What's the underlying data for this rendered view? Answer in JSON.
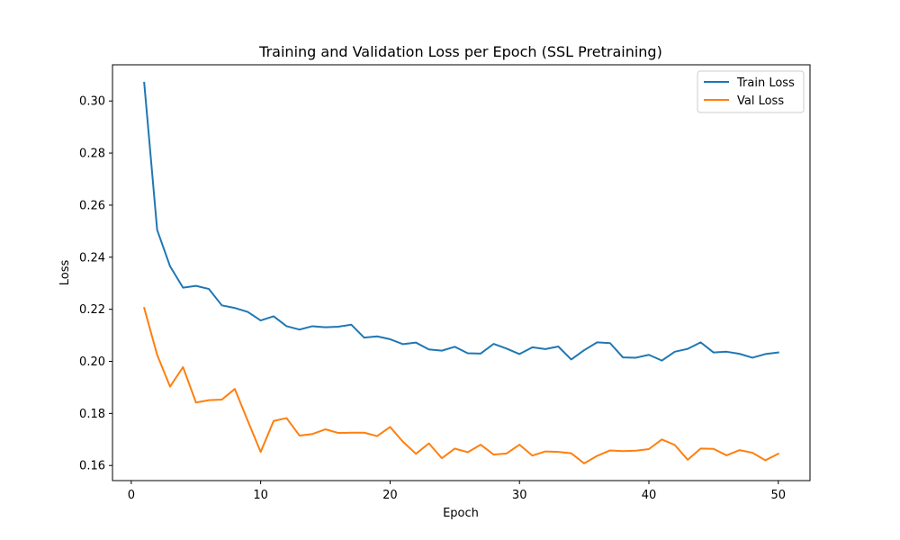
{
  "chart_data": {
    "type": "line",
    "title": "Training and Validation Loss per Epoch (SSL Pretraining)",
    "xlabel": "Epoch",
    "ylabel": "Loss",
    "xlim": [
      -1.45,
      52.45
    ],
    "ylim": [
      0.1542,
      0.3139
    ],
    "xticks": [
      0,
      10,
      20,
      30,
      40,
      50
    ],
    "yticks": [
      0.16,
      0.18,
      0.2,
      0.22,
      0.24,
      0.26,
      0.28,
      0.3
    ],
    "ytick_labels": [
      "0.16",
      "0.18",
      "0.20",
      "0.22",
      "0.24",
      "0.26",
      "0.28",
      "0.30"
    ],
    "grid": false,
    "legend": "top-right",
    "x": [
      1,
      2,
      3,
      4,
      5,
      6,
      7,
      8,
      9,
      10,
      11,
      12,
      13,
      14,
      15,
      16,
      17,
      18,
      19,
      20,
      21,
      22,
      23,
      24,
      25,
      26,
      27,
      28,
      29,
      30,
      31,
      32,
      33,
      34,
      35,
      36,
      37,
      38,
      39,
      40,
      41,
      42,
      43,
      44,
      45,
      46,
      47,
      48,
      49,
      50
    ],
    "series": [
      {
        "name": "Train Loss",
        "color": "#1f77b4",
        "values": [
          0.307,
          0.2505,
          0.2365,
          0.2283,
          0.229,
          0.2278,
          0.2215,
          0.2205,
          0.219,
          0.2157,
          0.2173,
          0.2135,
          0.2122,
          0.2135,
          0.2131,
          0.2133,
          0.2141,
          0.2091,
          0.2096,
          0.2085,
          0.2066,
          0.2072,
          0.2046,
          0.2041,
          0.2056,
          0.2031,
          0.203,
          0.2067,
          0.2049,
          0.2028,
          0.2054,
          0.2047,
          0.2057,
          0.2007,
          0.2043,
          0.2073,
          0.207,
          0.2015,
          0.2014,
          0.2025,
          0.2003,
          0.2037,
          0.2048,
          0.2073,
          0.2034,
          0.2037,
          0.2029,
          0.2014,
          0.2028,
          0.2034
        ]
      },
      {
        "name": "Val Loss",
        "color": "#ff7f0e",
        "values": [
          0.2205,
          0.2025,
          0.1903,
          0.1978,
          0.1842,
          0.1851,
          0.1853,
          0.1894,
          0.1772,
          0.1652,
          0.1771,
          0.1782,
          0.1715,
          0.1721,
          0.1739,
          0.1725,
          0.1726,
          0.1726,
          0.1713,
          0.1748,
          0.1691,
          0.1645,
          0.1685,
          0.1628,
          0.1665,
          0.1651,
          0.168,
          0.1642,
          0.1646,
          0.168,
          0.1638,
          0.1654,
          0.1652,
          0.1647,
          0.1608,
          0.1637,
          0.1658,
          0.1655,
          0.1657,
          0.1663,
          0.17,
          0.1679,
          0.1622,
          0.1665,
          0.1664,
          0.1639,
          0.1659,
          0.1649,
          0.162,
          0.1645
        ]
      }
    ]
  }
}
